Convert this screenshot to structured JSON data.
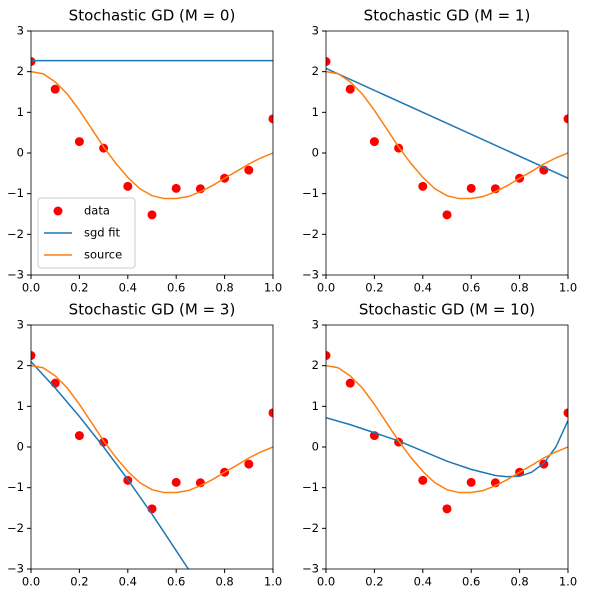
{
  "chart_data": [
    {
      "type": "line",
      "title": "Stochastic GD (M = 0)",
      "legend": "lower left",
      "xlim": [
        0,
        1
      ],
      "ylim": [
        -3,
        3
      ],
      "xticks": [
        {
          "value": 0,
          "label": "0.0"
        },
        0.2,
        0.4,
        0.6,
        0.8,
        {
          "value": 1,
          "label": "1.0"
        }
      ],
      "yticks": [
        {
          "value": -3,
          "label": "−3"
        },
        {
          "value": -2,
          "label": "−2"
        },
        {
          "value": -1,
          "label": "−1"
        },
        0,
        1,
        2,
        3
      ],
      "series": [
        {
          "name": "data",
          "kind": "scatter",
          "color": "#ff0000",
          "x": [
            0,
            0.1,
            0.2,
            0.3,
            0.4,
            0.5,
            0.6,
            0.7,
            0.8,
            0.9,
            1
          ],
          "values": [
            2.25,
            1.57,
            0.28,
            0.12,
            -0.82,
            -1.52,
            -0.87,
            -0.88,
            -0.62,
            -0.42,
            0.84
          ]
        },
        {
          "name": "sgd fit",
          "kind": "line",
          "color": "#1f77b4",
          "x": [
            0,
            1
          ],
          "values": [
            2.27,
            2.27
          ]
        },
        {
          "name": "source",
          "kind": "line",
          "color": "#ff7f0e",
          "x": [
            0,
            0.05,
            0.1,
            0.15,
            0.2,
            0.25,
            0.3,
            0.35,
            0.4,
            0.45,
            0.5,
            0.55,
            0.6,
            0.65,
            0.7,
            0.75,
            0.8,
            0.85,
            0.9,
            0.95,
            1
          ],
          "values": [
            2.0,
            1.95,
            1.75,
            1.45,
            1.05,
            0.6,
            0.15,
            -0.25,
            -0.6,
            -0.88,
            -1.05,
            -1.12,
            -1.12,
            -1.07,
            -0.95,
            -0.8,
            -0.62,
            -0.45,
            -0.27,
            -0.12,
            0.0
          ]
        }
      ]
    },
    {
      "type": "line",
      "title": "Stochastic GD (M = 1)",
      "xlim": [
        0,
        1
      ],
      "ylim": [
        -3,
        3
      ],
      "xticks": [
        {
          "value": 0,
          "label": "0.0"
        },
        0.2,
        0.4,
        0.6,
        0.8,
        {
          "value": 1,
          "label": "1.0"
        }
      ],
      "yticks": [
        {
          "value": -3,
          "label": "−3"
        },
        {
          "value": -2,
          "label": "−2"
        },
        {
          "value": -1,
          "label": "−1"
        },
        0,
        1,
        2,
        3
      ],
      "series": [
        {
          "kind": "scatter",
          "color": "#ff0000",
          "x": [
            0,
            0.1,
            0.2,
            0.3,
            0.4,
            0.5,
            0.6,
            0.7,
            0.8,
            0.9,
            1
          ],
          "values": [
            2.25,
            1.57,
            0.28,
            0.12,
            -0.82,
            -1.52,
            -0.87,
            -0.88,
            -0.62,
            -0.42,
            0.84
          ]
        },
        {
          "kind": "line",
          "color": "#1f77b4",
          "x": [
            0,
            1
          ],
          "values": [
            2.08,
            -0.62
          ]
        },
        {
          "kind": "line",
          "color": "#ff7f0e",
          "x": [
            0,
            0.05,
            0.1,
            0.15,
            0.2,
            0.25,
            0.3,
            0.35,
            0.4,
            0.45,
            0.5,
            0.55,
            0.6,
            0.65,
            0.7,
            0.75,
            0.8,
            0.85,
            0.9,
            0.95,
            1
          ],
          "values": [
            2.0,
            1.95,
            1.75,
            1.45,
            1.05,
            0.6,
            0.15,
            -0.25,
            -0.6,
            -0.88,
            -1.05,
            -1.12,
            -1.12,
            -1.07,
            -0.95,
            -0.8,
            -0.62,
            -0.45,
            -0.27,
            -0.12,
            0.0
          ]
        }
      ]
    },
    {
      "type": "line",
      "title": "Stochastic GD (M = 3)",
      "xlim": [
        0,
        1
      ],
      "ylim": [
        -3,
        3
      ],
      "xticks": [
        {
          "value": 0,
          "label": "0.0"
        },
        0.2,
        0.4,
        0.6,
        0.8,
        {
          "value": 1,
          "label": "1.0"
        }
      ],
      "yticks": [
        {
          "value": -3,
          "label": "−3"
        },
        {
          "value": -2,
          "label": "−2"
        },
        {
          "value": -1,
          "label": "−1"
        },
        0,
        1,
        2,
        3
      ],
      "series": [
        {
          "kind": "scatter",
          "color": "#ff0000",
          "x": [
            0,
            0.1,
            0.2,
            0.3,
            0.4,
            0.5,
            0.6,
            0.7,
            0.8,
            0.9,
            1
          ],
          "values": [
            2.25,
            1.57,
            0.28,
            0.12,
            -0.82,
            -1.52,
            -0.87,
            -0.88,
            -0.62,
            -0.42,
            0.84
          ]
        },
        {
          "kind": "line",
          "color": "#1f77b4",
          "x": [
            0,
            0.1,
            0.2,
            0.3,
            0.4,
            0.5,
            0.6,
            0.65
          ],
          "values": [
            2.1,
            1.45,
            0.75,
            0.0,
            -0.8,
            -1.65,
            -2.55,
            -3.0
          ]
        },
        {
          "kind": "line",
          "color": "#ff7f0e",
          "x": [
            0,
            0.05,
            0.1,
            0.15,
            0.2,
            0.25,
            0.3,
            0.35,
            0.4,
            0.45,
            0.5,
            0.55,
            0.6,
            0.65,
            0.7,
            0.75,
            0.8,
            0.85,
            0.9,
            0.95,
            1
          ],
          "values": [
            2.0,
            1.95,
            1.75,
            1.45,
            1.05,
            0.6,
            0.15,
            -0.25,
            -0.6,
            -0.88,
            -1.05,
            -1.12,
            -1.12,
            -1.07,
            -0.95,
            -0.8,
            -0.62,
            -0.45,
            -0.27,
            -0.12,
            0.0
          ]
        }
      ]
    },
    {
      "type": "line",
      "title": "Stochastic GD (M = 10)",
      "xlim": [
        0,
        1
      ],
      "ylim": [
        -3,
        3
      ],
      "xticks": [
        {
          "value": 0,
          "label": "0.0"
        },
        0.2,
        0.4,
        0.6,
        0.8,
        {
          "value": 1,
          "label": "1.0"
        }
      ],
      "yticks": [
        {
          "value": -3,
          "label": "−3"
        },
        {
          "value": -2,
          "label": "−2"
        },
        {
          "value": -1,
          "label": "−1"
        },
        0,
        1,
        2,
        3
      ],
      "series": [
        {
          "kind": "scatter",
          "color": "#ff0000",
          "x": [
            0,
            0.1,
            0.2,
            0.3,
            0.4,
            0.5,
            0.6,
            0.7,
            0.8,
            0.9,
            1
          ],
          "values": [
            2.25,
            1.57,
            0.28,
            0.12,
            -0.82,
            -1.52,
            -0.87,
            -0.88,
            -0.62,
            -0.42,
            0.84
          ]
        },
        {
          "kind": "line",
          "color": "#1f77b4",
          "x": [
            0,
            0.1,
            0.2,
            0.3,
            0.4,
            0.5,
            0.6,
            0.7,
            0.75,
            0.8,
            0.85,
            0.9,
            0.95,
            1
          ],
          "values": [
            0.72,
            0.55,
            0.35,
            0.15,
            -0.1,
            -0.35,
            -0.55,
            -0.7,
            -0.73,
            -0.72,
            -0.62,
            -0.4,
            0.0,
            0.65
          ]
        },
        {
          "kind": "line",
          "color": "#ff7f0e",
          "x": [
            0,
            0.05,
            0.1,
            0.15,
            0.2,
            0.25,
            0.3,
            0.35,
            0.4,
            0.45,
            0.5,
            0.55,
            0.6,
            0.65,
            0.7,
            0.75,
            0.8,
            0.85,
            0.9,
            0.95,
            1
          ],
          "values": [
            2.0,
            1.95,
            1.75,
            1.45,
            1.05,
            0.6,
            0.15,
            -0.25,
            -0.6,
            -0.88,
            -1.05,
            -1.12,
            -1.12,
            -1.07,
            -0.95,
            -0.8,
            -0.62,
            -0.45,
            -0.27,
            -0.12,
            0.0
          ]
        }
      ]
    }
  ]
}
